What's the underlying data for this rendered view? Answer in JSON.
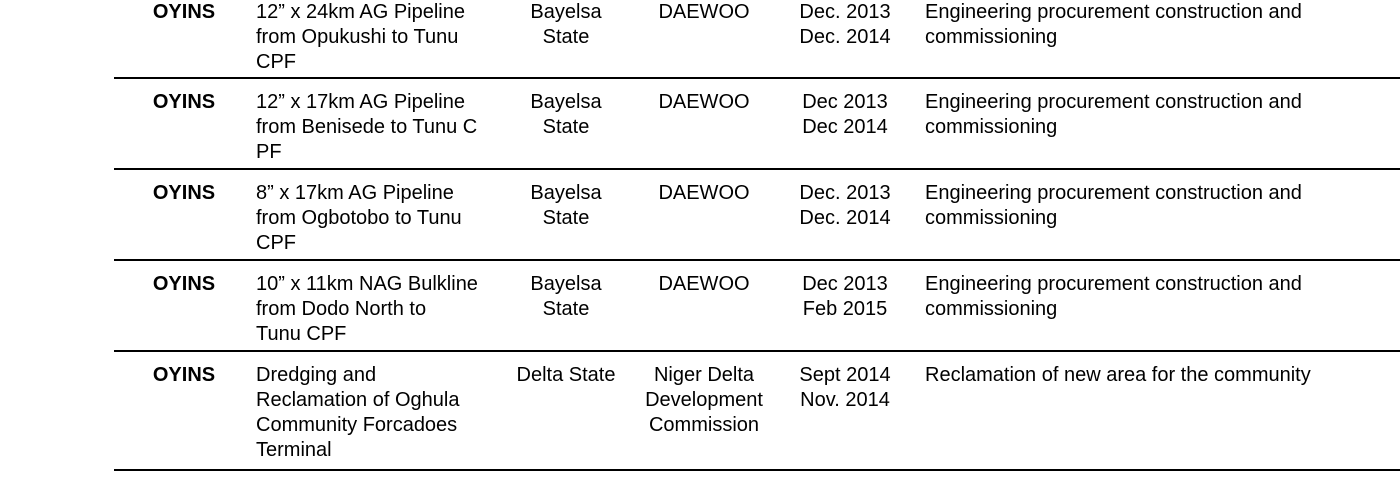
{
  "table": {
    "background": "#ffffff",
    "text_color": "#000000",
    "rule_color": "#000000",
    "rows": [
      {
        "company": "OYINS",
        "project": "12” x 24km AG Pipeline\nfrom Opukushi to Tunu\nCPF",
        "location": "Bayelsa\nState",
        "client": "DAEWOO",
        "dates": "Dec. 2013\nDec. 2014",
        "description": "Engineering procurement construction and\ncommissioning"
      },
      {
        "company": "OYINS",
        "project": "12” x 17km AG Pipeline\nfrom Benisede to Tunu C\nPF",
        "location": "Bayelsa\nState",
        "client": "DAEWOO",
        "dates": "Dec 2013\nDec 2014",
        "description": "Engineering procurement construction and\ncommissioning"
      },
      {
        "company": "OYINS",
        "project": "8” x 17km AG Pipeline\nfrom Ogbotobo to Tunu\nCPF",
        "location": "Bayelsa\nState",
        "client": "DAEWOO",
        "dates": "Dec. 2013\nDec. 2014",
        "description": "Engineering procurement construction and\ncommissioning"
      },
      {
        "company": "OYINS",
        "project": "10” x 11km NAG Bulkline\nfrom Dodo North to\nTunu CPF",
        "location": "Bayelsa\nState",
        "client": "DAEWOO",
        "dates": "Dec 2013\nFeb 2015",
        "description": "Engineering procurement construction and\ncommissioning"
      },
      {
        "company": "OYINS",
        "project": "Dredging and\nReclamation of Oghula\nCommunity Forcadoes\nTerminal",
        "location": "Delta State",
        "client": "Niger Delta\nDevelopment\nCommission",
        "dates": "Sept 2014\nNov. 2014",
        "description": "Reclamation of new area for the community"
      }
    ]
  }
}
